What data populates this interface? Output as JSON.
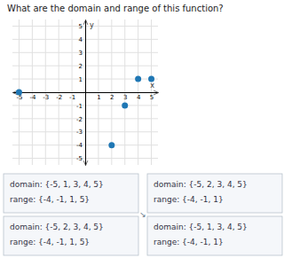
{
  "chart_data": {
    "type": "scatter",
    "title": "What are the domain and range of this function?",
    "x": [
      -5,
      2,
      3,
      4,
      5
    ],
    "y": [
      0,
      -4,
      -1,
      1,
      1
    ],
    "x_label": "x",
    "y_label": "y",
    "xlim": [
      -5.5,
      5.5
    ],
    "ylim": [
      -5.5,
      5.5
    ],
    "xticks": [
      -5,
      -4,
      -3,
      -2,
      -1,
      1,
      2,
      3,
      4,
      5
    ],
    "yticks": [
      -5,
      -4,
      -3,
      -2,
      -1,
      1,
      2,
      3,
      4,
      5
    ],
    "grid": true,
    "marker": "circle",
    "annotations": [
      "domain: {-5, 1, 3, 4, 5}",
      "range: {-4, -1, 1, 5}",
      "domain: {-5, 2, 3, 4, 5}",
      "range: {-4, -1, 1, 5}",
      "domain: {-5, 2, 3, 4, 5}",
      "range: {-4, -1, 1}",
      "domain: {-5, 1, 3, 4, 5}",
      "range: {-4, -1, 1}",
      "↘"
    ]
  }
}
